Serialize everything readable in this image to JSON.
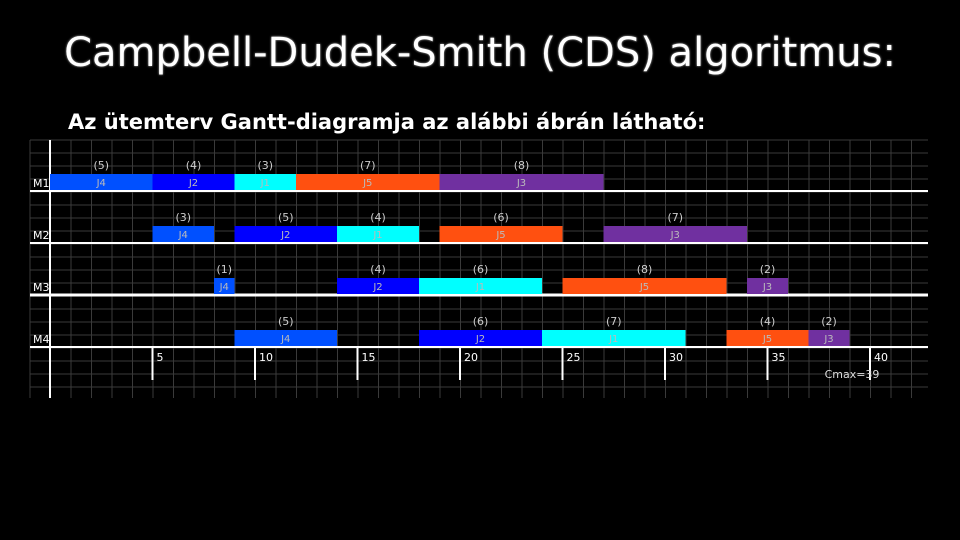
{
  "slide": {
    "title": "Campbell-Dudek-Smith (CDS) algoritmus:",
    "subtitle": "Az ütemterv Gantt-diagramja az alábbi ábrán látható:"
  },
  "chart_data": {
    "type": "gantt",
    "x_ticks": [
      5,
      10,
      15,
      20,
      25,
      30,
      35,
      40
    ],
    "xlim": [
      0,
      43
    ],
    "cmax_label": "Cmax=39",
    "grid": true,
    "colors": {
      "J1": "#00ffff",
      "J2": "#0000ff",
      "J3": "#7030a0",
      "J4": "#0050ff",
      "J5": "#ff5010"
    },
    "machines": [
      {
        "name": "M1",
        "tasks": [
          {
            "job": "J4",
            "start": 0,
            "end": 5,
            "duration_label": "(5)"
          },
          {
            "job": "J2",
            "start": 5,
            "end": 9,
            "duration_label": "(4)"
          },
          {
            "job": "J1",
            "start": 9,
            "end": 12,
            "duration_label": "(3)"
          },
          {
            "job": "J5",
            "start": 12,
            "end": 19,
            "duration_label": "(7)"
          },
          {
            "job": "J3",
            "start": 19,
            "end": 27,
            "duration_label": "(8)"
          }
        ]
      },
      {
        "name": "M2",
        "tasks": [
          {
            "job": "J4",
            "start": 5,
            "end": 8,
            "duration_label": "(3)"
          },
          {
            "job": "J2",
            "start": 9,
            "end": 14,
            "duration_label": "(5)"
          },
          {
            "job": "J1",
            "start": 14,
            "end": 18,
            "duration_label": "(4)"
          },
          {
            "job": "J5",
            "start": 19,
            "end": 25,
            "duration_label": "(6)"
          },
          {
            "job": "J3",
            "start": 27,
            "end": 34,
            "duration_label": "(7)"
          }
        ]
      },
      {
        "name": "M3",
        "tasks": [
          {
            "job": "J4",
            "start": 8,
            "end": 9,
            "duration_label": "(1)"
          },
          {
            "job": "J2",
            "start": 14,
            "end": 18,
            "duration_label": "(4)"
          },
          {
            "job": "J1",
            "start": 18,
            "end": 24,
            "duration_label": "(6)"
          },
          {
            "job": "J5",
            "start": 25,
            "end": 33,
            "duration_label": "(8)"
          },
          {
            "job": "J3",
            "start": 34,
            "end": 36,
            "duration_label": "(2)"
          }
        ]
      },
      {
        "name": "M4",
        "tasks": [
          {
            "job": "J4",
            "start": 9,
            "end": 14,
            "duration_label": "(5)"
          },
          {
            "job": "J2",
            "start": 18,
            "end": 24,
            "duration_label": "(6)"
          },
          {
            "job": "J1",
            "start": 24,
            "end": 31,
            "duration_label": "(7)"
          },
          {
            "job": "J5",
            "start": 33,
            "end": 37,
            "duration_label": "(4)"
          },
          {
            "job": "J3",
            "start": 37,
            "end": 39,
            "duration_label": "(2)"
          }
        ]
      }
    ]
  }
}
